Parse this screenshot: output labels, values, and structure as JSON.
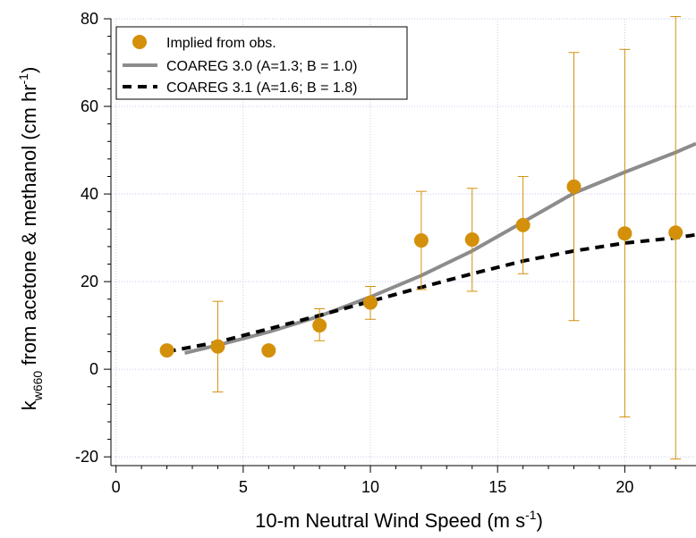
{
  "chart_data": {
    "type": "scatter",
    "xlabel": {
      "main": "10-m Neutral Wind Speed (m s",
      "sup": "-1",
      "close": ")"
    },
    "ylabel": {
      "k": "k",
      "sub": "w660",
      "main": " from acetone & methanol (cm hr",
      "sup": "-1",
      "close": ")"
    },
    "xlim": [
      -0.2,
      22.8
    ],
    "ylim": [
      -22,
      80
    ],
    "x_ticks": [
      0,
      5,
      10,
      15,
      20
    ],
    "y_ticks": [
      -20,
      0,
      20,
      40,
      60,
      80
    ],
    "x_minor_step": 1,
    "y_minor_step": 4,
    "grid": true,
    "legend_position": "top-left",
    "series": [
      {
        "name": "Implied from obs.",
        "kind": "points-with-errorbars",
        "color": "#d4900a",
        "points": [
          {
            "x": 2,
            "y": 4.3,
            "lo": null,
            "hi": null
          },
          {
            "x": 4,
            "y": 5.2,
            "lo": -5.2,
            "hi": 15.5
          },
          {
            "x": 6,
            "y": 4.3,
            "lo": null,
            "hi": null
          },
          {
            "x": 8,
            "y": 10.0,
            "lo": 6.5,
            "hi": 13.8
          },
          {
            "x": 10,
            "y": 15.2,
            "lo": 11.4,
            "hi": 18.9
          },
          {
            "x": 12,
            "y": 29.4,
            "lo": 18.2,
            "hi": 40.6
          },
          {
            "x": 14,
            "y": 29.6,
            "lo": 17.8,
            "hi": 41.3
          },
          {
            "x": 16,
            "y": 32.9,
            "lo": 21.8,
            "hi": 44.0
          },
          {
            "x": 18,
            "y": 41.7,
            "lo": 11.1,
            "hi": 72.3
          },
          {
            "x": 20,
            "y": 31.0,
            "lo": -10.9,
            "hi": 73.0
          },
          {
            "x": 22,
            "y": 31.2,
            "lo": -20.5,
            "hi": 80.5
          }
        ]
      },
      {
        "name": "COAREG 3.0 (A=1.3; B = 1.0)",
        "kind": "line",
        "color": "#8c8c8c",
        "dash": "solid",
        "x": [
          2.7,
          4,
          6,
          8,
          10,
          12,
          14,
          16,
          18,
          20,
          22,
          22.8
        ],
        "y": [
          3.7,
          5.5,
          8.5,
          12.1,
          16.5,
          21.4,
          27.0,
          33.6,
          40.2,
          45.0,
          49.5,
          51.5
        ]
      },
      {
        "name": "COAREG 3.1 (A=1.6; B = 1.8)",
        "kind": "line",
        "color": "#000000",
        "dash": "dashed",
        "x": [
          2,
          4,
          6,
          8,
          10,
          12,
          14,
          16,
          18,
          20,
          22,
          22.8
        ],
        "y": [
          4.0,
          6.2,
          9.2,
          12.3,
          15.5,
          18.7,
          21.8,
          24.7,
          27.0,
          28.8,
          30.0,
          30.7
        ]
      }
    ]
  }
}
